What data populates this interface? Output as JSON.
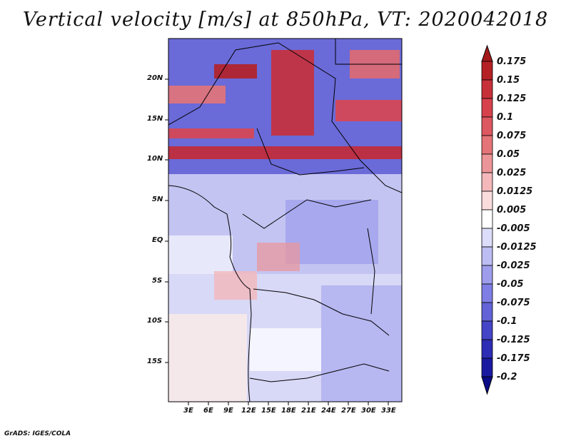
{
  "title": "Vertical velocity [m/s] at 850hPa, VT: 2020042018",
  "credit": "GrADS: IGES/COLA",
  "lat_labels": [
    "20N",
    "15N",
    "10N",
    "5N",
    "EQ",
    "5S",
    "10S",
    "15S"
  ],
  "lon_labels": [
    "3E",
    "6E",
    "9E",
    "12E",
    "15E",
    "18E",
    "21E",
    "24E",
    "27E",
    "30E",
    "33E"
  ],
  "colorbar": {
    "labels": [
      "0.175",
      "0.15",
      "0.125",
      "0.1",
      "0.075",
      "0.05",
      "0.025",
      "0.0125",
      "0.005",
      "-0.005",
      "-0.0125",
      "-0.025",
      "-0.05",
      "-0.075",
      "-0.1",
      "-0.125",
      "-0.175",
      "-0.2"
    ],
    "colors": [
      "#a3191b",
      "#b52025",
      "#c83039",
      "#d7414c",
      "#dd5860",
      "#e47478",
      "#ec9598",
      "#f4b8ba",
      "#fbdcdd",
      "#ffffff",
      "#dcdcfb",
      "#bdbdf4",
      "#9d9dec",
      "#7e7ee4",
      "#6363d7",
      "#4545c8",
      "#2d2db5",
      "#1a1aa0",
      "#0c0c88"
    ]
  },
  "chart_data": {
    "type": "heatmap",
    "title": "Vertical velocity [m/s] at 850hPa, VT: 2020042018",
    "variable": "vertical velocity",
    "units": "m/s",
    "level": "850hPa",
    "valid_time": "2020042018",
    "lon_range": [
      0,
      35
    ],
    "lat_range": [
      -20,
      25
    ],
    "lon_ticks": [
      "3E",
      "6E",
      "9E",
      "12E",
      "15E",
      "18E",
      "21E",
      "24E",
      "27E",
      "30E",
      "33E"
    ],
    "lat_ticks": [
      "20N",
      "15N",
      "10N",
      "5N",
      "EQ",
      "5S",
      "10S",
      "15S"
    ],
    "contour_levels": [
      -0.2,
      -0.175,
      -0.125,
      -0.1,
      -0.075,
      -0.05,
      -0.025,
      -0.0125,
      -0.005,
      0.005,
      0.0125,
      0.025,
      0.05,
      0.075,
      0.1,
      0.125,
      0.15,
      0.175
    ]
  }
}
